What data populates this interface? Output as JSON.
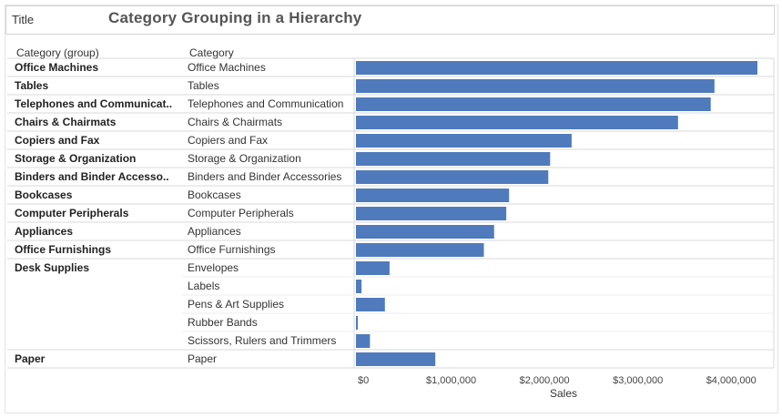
{
  "header": {
    "tag": "Title",
    "title": "Category Grouping in a Hierarchy"
  },
  "colors": {
    "bar": "#4f7bbd",
    "grid": "#d9d9d9",
    "panel_border": "#cccccc"
  },
  "chart_data": {
    "type": "bar",
    "orientation": "horizontal",
    "column_headers": {
      "group": "Category (group)",
      "category": "Category"
    },
    "groups": [
      {
        "name": "Office Machines",
        "label": "Office Machines",
        "categories": [
          "Office Machines"
        ]
      },
      {
        "name": "Tables",
        "label": "Tables",
        "categories": [
          "Tables"
        ]
      },
      {
        "name": "Telephones and Communication",
        "label": "Telephones and Communicat..",
        "categories": [
          "Telephones and Communication"
        ]
      },
      {
        "name": "Chairs & Chairmats",
        "label": "Chairs & Chairmats",
        "categories": [
          "Chairs & Chairmats"
        ]
      },
      {
        "name": "Copiers and Fax",
        "label": "Copiers and Fax",
        "categories": [
          "Copiers and Fax"
        ]
      },
      {
        "name": "Storage & Organization",
        "label": "Storage & Organization",
        "categories": [
          "Storage & Organization"
        ]
      },
      {
        "name": "Binders and Binder Accessories",
        "label": "Binders and Binder Accesso..",
        "categories": [
          "Binders and Binder Accessories"
        ]
      },
      {
        "name": "Bookcases",
        "label": "Bookcases",
        "categories": [
          "Bookcases"
        ]
      },
      {
        "name": "Computer Peripherals",
        "label": "Computer Peripherals",
        "categories": [
          "Computer Peripherals"
        ]
      },
      {
        "name": "Appliances",
        "label": "Appliances",
        "categories": [
          "Appliances"
        ]
      },
      {
        "name": "Office Furnishings",
        "label": "Office Furnishings",
        "categories": [
          "Office Furnishings"
        ]
      },
      {
        "name": "Desk Supplies",
        "label": "Desk Supplies",
        "categories": [
          "Envelopes",
          "Labels",
          "Pens & Art Supplies",
          "Rubber Bands",
          "Scissors, Rulers and Trimmers"
        ]
      },
      {
        "name": "Paper",
        "label": "Paper",
        "categories": [
          "Paper"
        ]
      }
    ],
    "categories": [
      "Office Machines",
      "Tables",
      "Telephones and Communication",
      "Chairs & Chairmats",
      "Copiers and Fax",
      "Storage & Organization",
      "Binders and Binder Accessories",
      "Bookcases",
      "Computer Peripherals",
      "Appliances",
      "Office Furnishings",
      "Envelopes",
      "Labels",
      "Pens & Art Supplies",
      "Rubber Bands",
      "Scissors, Rulers and Trimmers",
      "Paper"
    ],
    "values": [
      4300000,
      3840000,
      3800000,
      3450000,
      2310000,
      2080000,
      2060000,
      1640000,
      1610000,
      1480000,
      1370000,
      360000,
      60000,
      310000,
      20000,
      150000,
      850000
    ],
    "xlabel": "Sales",
    "xlim": [
      0,
      4400000
    ],
    "ticks": [
      0,
      1000000,
      2000000,
      3000000,
      4000000
    ],
    "tick_labels": [
      "$0",
      "$1,000,000",
      "$2,000,000",
      "$3,000,000",
      "$4,000,000"
    ],
    "grid": false
  }
}
